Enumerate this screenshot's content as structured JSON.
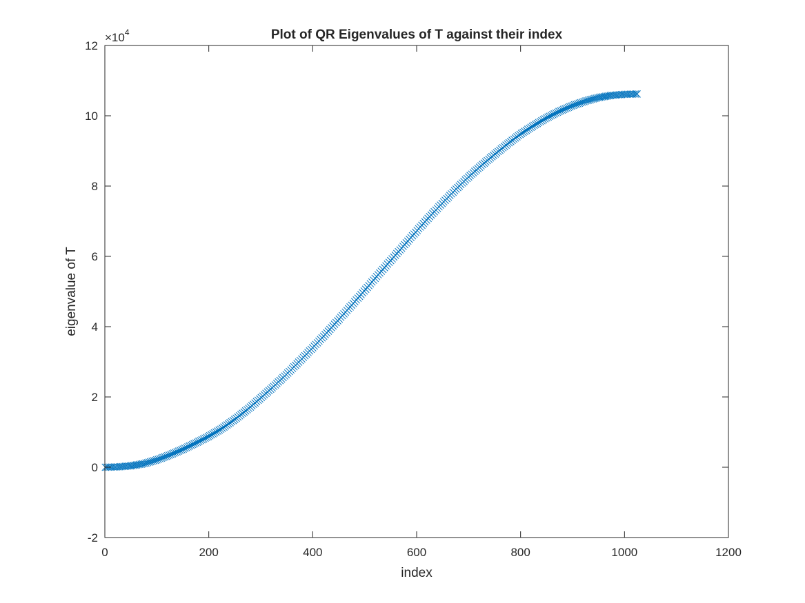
{
  "chart_data": {
    "type": "scatter",
    "title": "Plot of QR Eigenvalues of T against their index",
    "xlabel": "index",
    "ylabel": "eigenvalue of T",
    "xlim": [
      0,
      1200
    ],
    "ylim": [
      -20000,
      120000
    ],
    "x_ticks": [
      0,
      200,
      400,
      600,
      800,
      1000,
      1200
    ],
    "x_tick_labels": [
      "0",
      "200",
      "400",
      "600",
      "800",
      "1000",
      "1200"
    ],
    "y_ticks": [
      -20000,
      0,
      20000,
      40000,
      60000,
      80000,
      100000,
      120000
    ],
    "y_tick_labels": [
      "-2",
      "0",
      "2",
      "4",
      "6",
      "8",
      "10",
      "12"
    ],
    "y_exponent_base": "×10",
    "y_exponent_power": "4",
    "marker": "x",
    "grid": false,
    "box": true,
    "series": [
      {
        "color": "#0072BD",
        "x": [
          1,
          25,
          50,
          75,
          100,
          125,
          150,
          175,
          200,
          225,
          250,
          275,
          300,
          325,
          350,
          375,
          400,
          425,
          450,
          475,
          500,
          525,
          550,
          575,
          600,
          625,
          650,
          675,
          700,
          725,
          750,
          775,
          800,
          825,
          850,
          875,
          900,
          925,
          950,
          975,
          1000,
          1024
        ],
        "y": [
          0,
          100,
          400,
          1000,
          2100,
          3500,
          5100,
          6900,
          8800,
          11000,
          13600,
          16500,
          19700,
          23000,
          26500,
          30200,
          34000,
          37900,
          42000,
          46100,
          50300,
          54600,
          58800,
          63000,
          67200,
          71300,
          75200,
          79000,
          82600,
          85900,
          89000,
          92000,
          94800,
          97200,
          99400,
          101300,
          102900,
          104200,
          105200,
          105800,
          106100,
          106200
        ]
      }
    ]
  }
}
